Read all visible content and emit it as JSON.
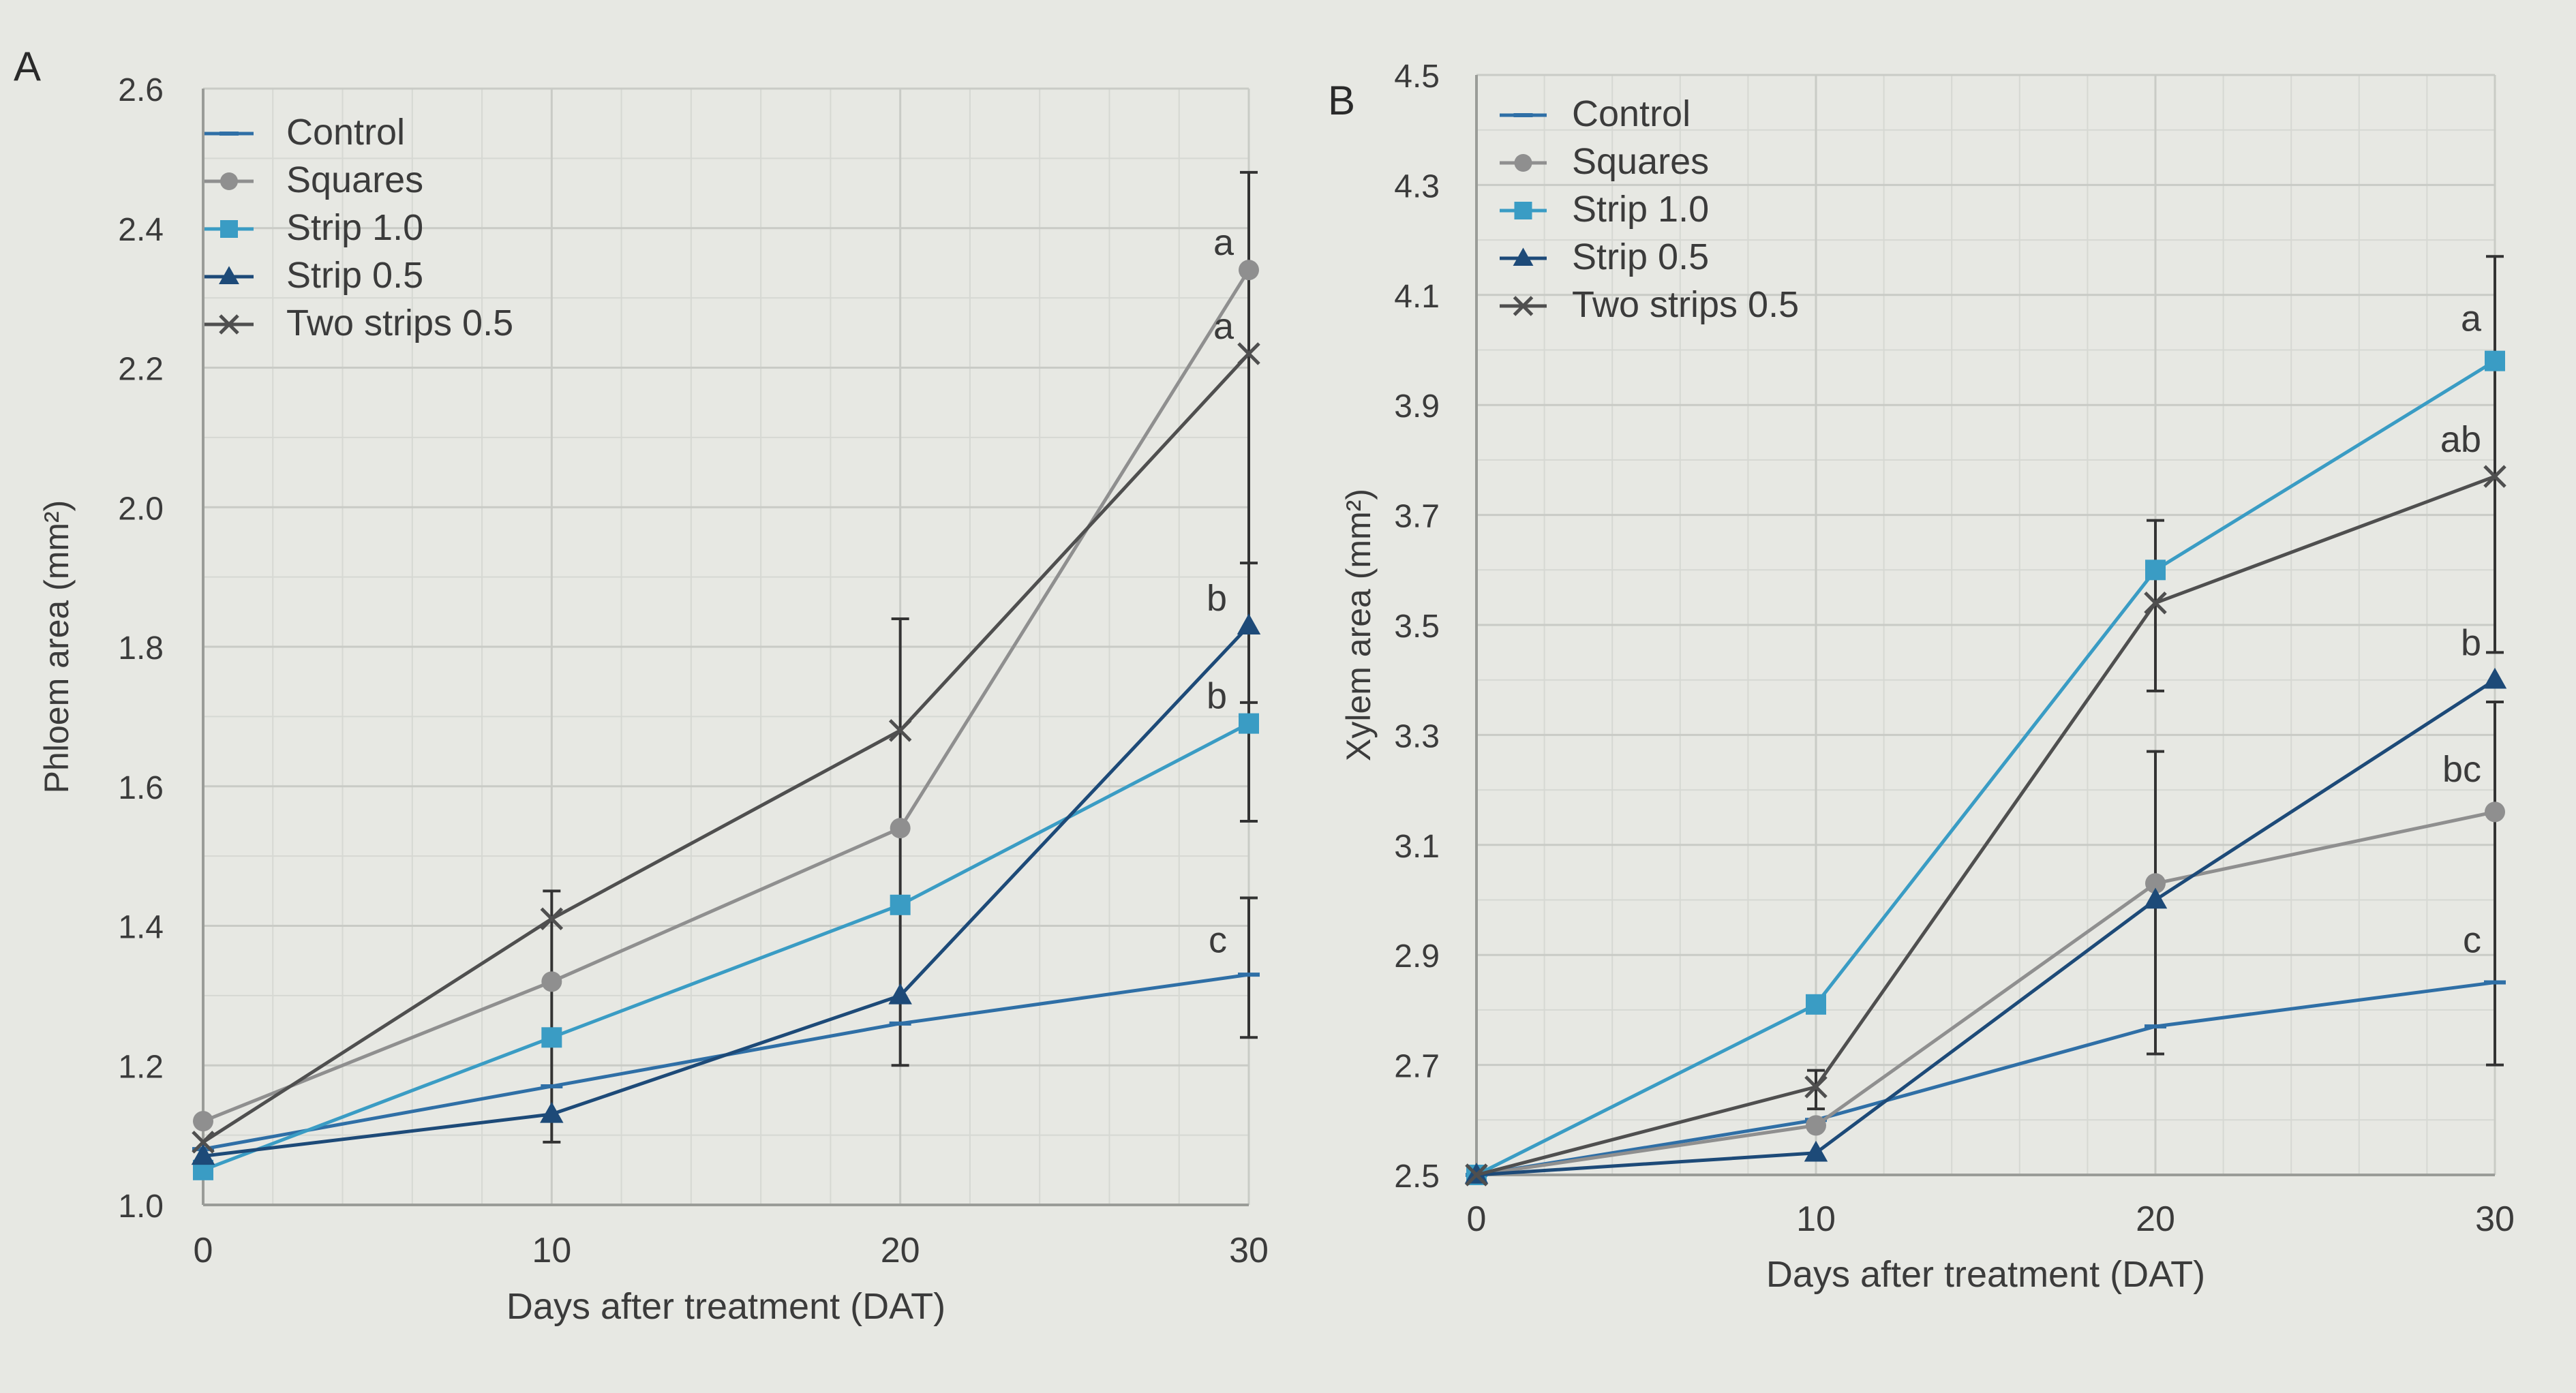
{
  "colors": {
    "Control": "#2f6fa6",
    "Squares": "#8f8f8f",
    "Strip 1.0": "#3a9cc4",
    "Strip 0.5": "#1d4a78",
    "Two strips 0.5": "#4f4f4f",
    "grid": "#c9cbc6",
    "axis": "#9a9c98",
    "text": "#3b3b3b"
  },
  "chart_data": [
    {
      "panel_label": "A",
      "type": "line",
      "xlabel": "Days after treatment (DAT)",
      "ylabel": "Phloem area (mm²)",
      "x": [
        0,
        10,
        20,
        30
      ],
      "xlim": [
        0,
        30
      ],
      "ylim": [
        1.0,
        2.6
      ],
      "xticks": [
        "0",
        "10",
        "20",
        "30"
      ],
      "yticks": [
        "1.0",
        "1.2",
        "1.4",
        "1.6",
        "1.8",
        "2.0",
        "2.2",
        "2.4",
        "2.6"
      ],
      "grid": true,
      "legend_position": "top-left",
      "series": [
        {
          "name": "Control",
          "marker": "dash",
          "values": [
            1.08,
            1.17,
            1.26,
            1.33
          ]
        },
        {
          "name": "Squares",
          "marker": "circle",
          "values": [
            1.12,
            1.32,
            1.54,
            2.34
          ]
        },
        {
          "name": "Strip 1.0",
          "marker": "square",
          "values": [
            1.05,
            1.24,
            1.43,
            1.69
          ]
        },
        {
          "name": "Strip 0.5",
          "marker": "triangle",
          "values": [
            1.07,
            1.13,
            1.3,
            1.83
          ]
        },
        {
          "name": "Two strips 0.5",
          "marker": "x",
          "values": [
            1.09,
            1.41,
            1.68,
            2.22
          ]
        }
      ],
      "error_bars": [
        {
          "x": 10,
          "low": 1.09,
          "high": 1.45
        },
        {
          "x": 20,
          "low": 1.2,
          "high": 1.84
        },
        {
          "x": 30,
          "low": 1.72,
          "high": 2.48
        },
        {
          "x": 30,
          "low": 1.55,
          "high": 1.92
        },
        {
          "x": 30,
          "low": 1.24,
          "high": 1.44
        }
      ],
      "annotations": [
        {
          "text": "a",
          "x": 30,
          "y": 2.35
        },
        {
          "text": "a",
          "x": 30,
          "y": 2.23
        },
        {
          "text": "b",
          "x": 30,
          "y": 1.84
        },
        {
          "text": "b",
          "x": 30,
          "y": 1.7
        },
        {
          "text": "c",
          "x": 30,
          "y": 1.35
        }
      ]
    },
    {
      "panel_label": "B",
      "type": "line",
      "xlabel": "Days after treatment (DAT)",
      "ylabel": "Xylem area (mm²)",
      "x": [
        0,
        10,
        20,
        30
      ],
      "xlim": [
        0,
        30
      ],
      "ylim": [
        2.5,
        4.5
      ],
      "xticks": [
        "0",
        "10",
        "20",
        "30"
      ],
      "yticks": [
        "2.5",
        "2.7",
        "2.9",
        "3.1",
        "3.3",
        "3.5",
        "3.7",
        "3.9",
        "4.1",
        "4.3",
        "4.5"
      ],
      "grid": true,
      "legend_position": "top-left",
      "series": [
        {
          "name": "Control",
          "marker": "dash",
          "values": [
            2.5,
            2.6,
            2.77,
            2.85
          ]
        },
        {
          "name": "Squares",
          "marker": "circle",
          "values": [
            2.5,
            2.59,
            3.03,
            3.16
          ]
        },
        {
          "name": "Strip 1.0",
          "marker": "square",
          "values": [
            2.5,
            2.81,
            3.6,
            3.98
          ]
        },
        {
          "name": "Strip 0.5",
          "marker": "triangle",
          "values": [
            2.5,
            2.54,
            3.0,
            3.4
          ]
        },
        {
          "name": "Two strips 0.5",
          "marker": "x",
          "values": [
            2.5,
            2.66,
            3.54,
            3.77
          ]
        }
      ],
      "error_bars": [
        {
          "x": 10,
          "low": 2.62,
          "high": 2.69
        },
        {
          "x": 20,
          "low": 3.38,
          "high": 3.69
        },
        {
          "x": 20,
          "low": 2.72,
          "high": 3.27
        },
        {
          "x": 30,
          "low": 3.45,
          "high": 4.17
        },
        {
          "x": 30,
          "low": 2.7,
          "high": 3.36
        }
      ],
      "annotations": [
        {
          "text": "a",
          "x": 30,
          "y": 4.02
        },
        {
          "text": "ab",
          "x": 30,
          "y": 3.8
        },
        {
          "text": "b",
          "x": 30,
          "y": 3.43
        },
        {
          "text": "bc",
          "x": 30,
          "y": 3.2
        },
        {
          "text": "c",
          "x": 30,
          "y": 2.89
        }
      ]
    }
  ]
}
